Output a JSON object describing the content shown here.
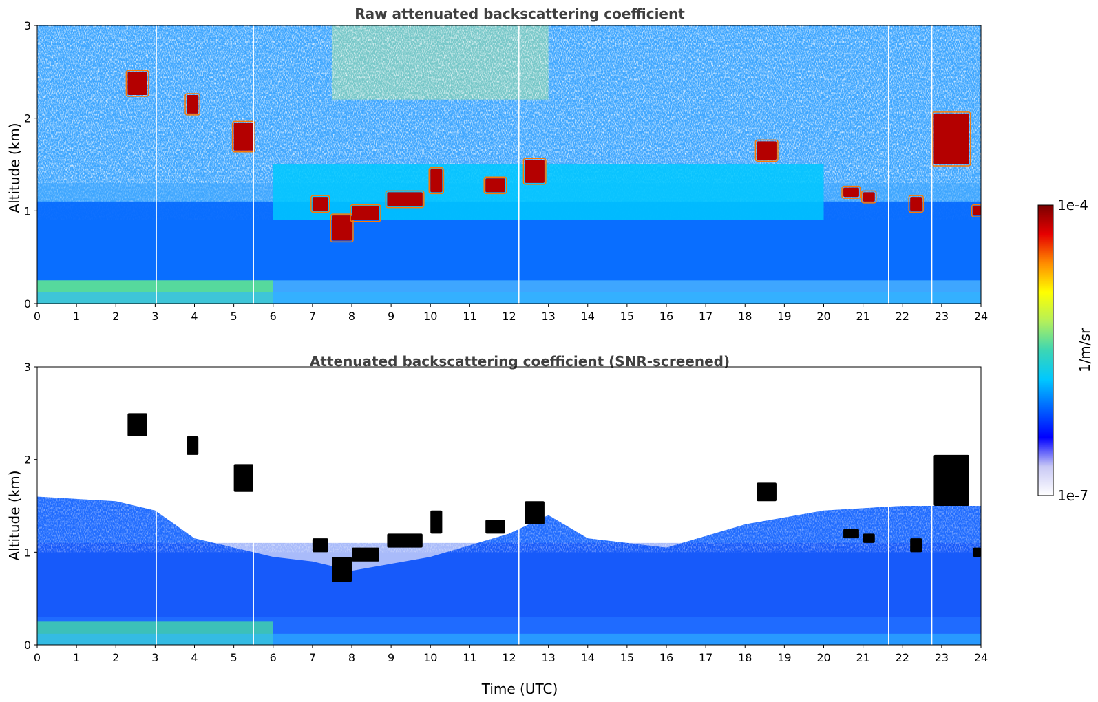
{
  "colors": {
    "colormap": [
      "#ffffff",
      "#c8c8f5",
      "#0000ff",
      "#0064ff",
      "#00c8ff",
      "#3cd6b4",
      "#b4f05a",
      "#ffff00",
      "#ff8c00",
      "#e60000",
      "#7a0000"
    ],
    "cloud_outline_screened": "#000000"
  },
  "colorbar": {
    "label": "1/m/sr",
    "max_label": "1e-4",
    "min_label": "1e-7",
    "scale": "log",
    "range": [
      1e-07,
      0.0001
    ]
  },
  "chart_data": [
    {
      "type": "heatmap",
      "title": "Raw attenuated backscattering coefficient",
      "xlabel": "",
      "ylabel": "Altitude (km)",
      "xlim": [
        0,
        24
      ],
      "ylim": [
        0,
        3
      ],
      "xticks": [
        "0",
        "1",
        "2",
        "3",
        "4",
        "5",
        "6",
        "7",
        "8",
        "9",
        "10",
        "11",
        "12",
        "13",
        "14",
        "15",
        "16",
        "17",
        "18",
        "19",
        "20",
        "21",
        "22",
        "23",
        "24"
      ],
      "yticks": [
        "0",
        "1",
        "2",
        "3"
      ],
      "noise_above_signal": true,
      "data_gaps_hours": [
        3.03,
        5.5,
        12.25,
        21.65,
        22.75
      ],
      "layers": [
        {
          "x": [
            0,
            6
          ],
          "y": [
            0.0,
            0.25
          ],
          "intensity": 0.55
        },
        {
          "x": [
            0,
            24
          ],
          "y": [
            0.25,
            1.1
          ],
          "intensity": 0.32
        },
        {
          "x": [
            6,
            20
          ],
          "y": [
            0.9,
            1.5
          ],
          "intensity": 0.38
        }
      ],
      "clouds": [
        {
          "x": [
            2.3,
            2.8
          ],
          "y": [
            2.25,
            2.5
          ]
        },
        {
          "x": [
            3.8,
            4.1
          ],
          "y": [
            2.05,
            2.25
          ]
        },
        {
          "x": [
            5.0,
            5.5
          ],
          "y": [
            1.65,
            1.95
          ]
        },
        {
          "x": [
            7.0,
            7.4
          ],
          "y": [
            1.0,
            1.15
          ]
        },
        {
          "x": [
            7.5,
            8.0
          ],
          "y": [
            0.68,
            0.95
          ]
        },
        {
          "x": [
            8.0,
            8.7
          ],
          "y": [
            0.9,
            1.05
          ]
        },
        {
          "x": [
            8.9,
            9.8
          ],
          "y": [
            1.05,
            1.2
          ]
        },
        {
          "x": [
            10.0,
            10.3
          ],
          "y": [
            1.2,
            1.45
          ]
        },
        {
          "x": [
            11.4,
            11.9
          ],
          "y": [
            1.2,
            1.35
          ]
        },
        {
          "x": [
            12.4,
            12.9
          ],
          "y": [
            1.3,
            1.55
          ]
        },
        {
          "x": [
            18.3,
            18.8
          ],
          "y": [
            1.55,
            1.75
          ]
        },
        {
          "x": [
            20.5,
            20.9
          ],
          "y": [
            1.15,
            1.25
          ]
        },
        {
          "x": [
            21.0,
            21.3
          ],
          "y": [
            1.1,
            1.2
          ]
        },
        {
          "x": [
            22.2,
            22.5
          ],
          "y": [
            1.0,
            1.15
          ]
        },
        {
          "x": [
            22.8,
            23.7
          ],
          "y": [
            1.5,
            2.05
          ]
        },
        {
          "x": [
            23.8,
            24.0
          ],
          "y": [
            0.95,
            1.05
          ]
        }
      ]
    },
    {
      "type": "heatmap",
      "title": "Attenuated backscattering coefficient (SNR-screened)",
      "xlabel": "Time (UTC)",
      "ylabel": "Altitude (km)",
      "xlim": [
        0,
        24
      ],
      "ylim": [
        0,
        3
      ],
      "xticks": [
        "0",
        "1",
        "2",
        "3",
        "4",
        "5",
        "6",
        "7",
        "8",
        "9",
        "10",
        "11",
        "12",
        "13",
        "14",
        "15",
        "16",
        "17",
        "18",
        "19",
        "20",
        "21",
        "22",
        "23",
        "24"
      ],
      "yticks": [
        "0",
        "1",
        "2",
        "3"
      ],
      "screened_top_km": [
        [
          0,
          1.6
        ],
        [
          2,
          1.55
        ],
        [
          3,
          1.45
        ],
        [
          4,
          1.15
        ],
        [
          5,
          1.05
        ],
        [
          6,
          0.95
        ],
        [
          7,
          0.9
        ],
        [
          8,
          0.8
        ],
        [
          10,
          0.95
        ],
        [
          12,
          1.2
        ],
        [
          13,
          1.4
        ],
        [
          14,
          1.15
        ],
        [
          16,
          1.05
        ],
        [
          18,
          1.3
        ],
        [
          20,
          1.45
        ],
        [
          22,
          1.5
        ],
        [
          24,
          1.5
        ]
      ],
      "data_gaps_hours": [
        3.03,
        5.5,
        12.25,
        21.65,
        22.75
      ],
      "clouds": [
        {
          "x": [
            2.3,
            2.8
          ],
          "y": [
            2.25,
            2.5
          ]
        },
        {
          "x": [
            3.8,
            4.1
          ],
          "y": [
            2.05,
            2.25
          ]
        },
        {
          "x": [
            5.0,
            5.5
          ],
          "y": [
            1.65,
            1.95
          ]
        },
        {
          "x": [
            7.0,
            7.4
          ],
          "y": [
            1.0,
            1.15
          ]
        },
        {
          "x": [
            7.5,
            8.0
          ],
          "y": [
            0.68,
            0.95
          ]
        },
        {
          "x": [
            8.0,
            8.7
          ],
          "y": [
            0.9,
            1.05
          ]
        },
        {
          "x": [
            8.9,
            9.8
          ],
          "y": [
            1.05,
            1.2
          ]
        },
        {
          "x": [
            10.0,
            10.3
          ],
          "y": [
            1.2,
            1.45
          ]
        },
        {
          "x": [
            11.4,
            11.9
          ],
          "y": [
            1.2,
            1.35
          ]
        },
        {
          "x": [
            12.4,
            12.9
          ],
          "y": [
            1.3,
            1.55
          ]
        },
        {
          "x": [
            18.3,
            18.8
          ],
          "y": [
            1.55,
            1.75
          ]
        },
        {
          "x": [
            20.5,
            20.9
          ],
          "y": [
            1.15,
            1.25
          ]
        },
        {
          "x": [
            21.0,
            21.3
          ],
          "y": [
            1.1,
            1.2
          ]
        },
        {
          "x": [
            22.2,
            22.5
          ],
          "y": [
            1.0,
            1.15
          ]
        },
        {
          "x": [
            22.8,
            23.7
          ],
          "y": [
            1.5,
            2.05
          ]
        },
        {
          "x": [
            23.8,
            24.0
          ],
          "y": [
            0.95,
            1.05
          ]
        }
      ]
    }
  ]
}
